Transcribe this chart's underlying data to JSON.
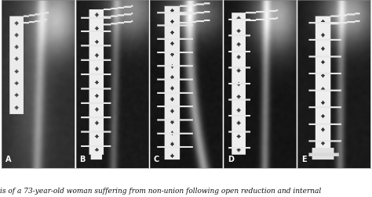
{
  "caption": "is of a 73-year-old woman suffering from non-union following open reduction and internal",
  "panel_labels": [
    "A",
    "B",
    "C",
    "D",
    "E"
  ],
  "n_panels": 5,
  "bg_color": "#ffffff",
  "label_color": "#ffffff",
  "label_fontsize": 7,
  "caption_fontsize": 6.5,
  "figure_width": 4.74,
  "figure_height": 2.52,
  "implant_color": "#f0f0f0",
  "border_color": "#888888"
}
